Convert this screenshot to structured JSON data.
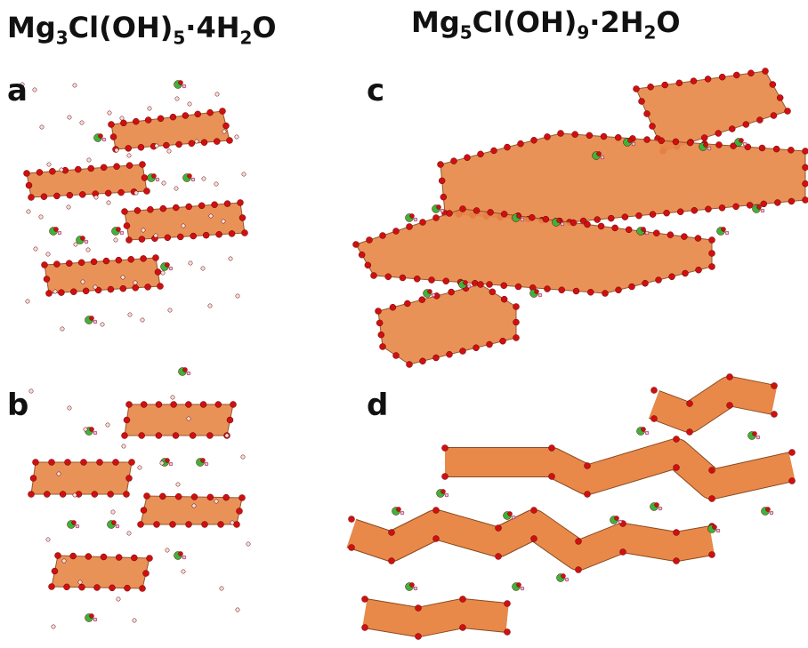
{
  "titles": [
    {
      "parts": [
        "Mg",
        "3",
        "Cl(OH)",
        "5",
        "·4H",
        "2",
        "O"
      ]
    },
    {
      "parts": [
        "Mg",
        "5",
        "Cl(OH)",
        "9",
        "·2H",
        "2",
        "O"
      ]
    }
  ],
  "panels": [
    {
      "label": "a"
    },
    {
      "label": "b"
    },
    {
      "label": "c"
    },
    {
      "label": "d"
    }
  ]
}
